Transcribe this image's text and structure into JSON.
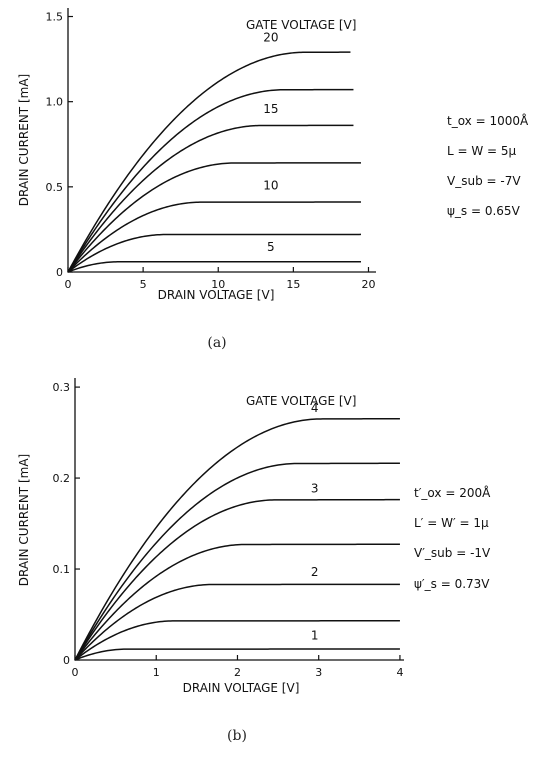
{
  "chart_data": [
    {
      "id": "a",
      "type": "line",
      "caption": "(a)",
      "xlabel": "DRAIN VOLTAGE [V]",
      "ylabel": "DRAIN CURRENT [mA]",
      "legend_title": "GATE VOLTAGE [V]",
      "xlim": [
        0,
        20.5
      ],
      "ylim": [
        0,
        1.55
      ],
      "xticks": [
        0,
        5,
        10,
        15,
        20
      ],
      "xtick_labels": [
        "0",
        "5",
        "10",
        "15",
        "20"
      ],
      "yticks": [
        0,
        0.5,
        1.0,
        1.5
      ],
      "ytick_labels": [
        "0",
        "0.5",
        "1.0",
        "1.5"
      ],
      "grid": false,
      "vsat_scale": 0.77,
      "series": [
        {
          "isat": 1.29,
          "xmax": 18.8,
          "label": "20",
          "label_x": 13.5,
          "label_y": 1.33
        },
        {
          "isat": 1.07,
          "xmax": 19.0,
          "label": "",
          "label_x": 0,
          "label_y": 0
        },
        {
          "isat": 0.86,
          "xmax": 19.0,
          "label": "15",
          "label_x": 13.5,
          "label_y": 0.91
        },
        {
          "isat": 0.64,
          "xmax": 19.5,
          "label": "",
          "label_x": 0,
          "label_y": 0
        },
        {
          "isat": 0.41,
          "xmax": 19.5,
          "label": "10",
          "label_x": 13.5,
          "label_y": 0.46
        },
        {
          "isat": 0.22,
          "xmax": 19.5,
          "label": "",
          "label_x": 0,
          "label_y": 0
        },
        {
          "isat": 0.06,
          "xmax": 19.5,
          "label": "5",
          "label_x": 13.5,
          "label_y": 0.1
        }
      ],
      "params": [
        "t_ox = 1000Å",
        "L = W = 5μ",
        "V_sub = -7V",
        "ψ_s = 0.65V"
      ]
    },
    {
      "id": "b",
      "type": "line",
      "caption": "(b)",
      "xlabel": "DRAIN VOLTAGE [V]",
      "ylabel": "DRAIN CURRENT [mA]",
      "legend_title": "GATE VOLTAGE [V]",
      "xlim": [
        0,
        4.05
      ],
      "ylim": [
        0,
        0.31
      ],
      "xticks": [
        0,
        1,
        2,
        3,
        4
      ],
      "xtick_labels": [
        "0",
        "1",
        "2",
        "3",
        "4"
      ],
      "yticks": [
        0,
        0.1,
        0.2,
        0.3
      ],
      "ytick_labels": [
        "0",
        "0.1",
        "0.2",
        "0.3"
      ],
      "grid": false,
      "vsat_scale": 0.75,
      "series": [
        {
          "isat": 0.265,
          "xmax": 4.0,
          "label": "4",
          "label_x": 2.95,
          "label_y": 0.268
        },
        {
          "isat": 0.216,
          "xmax": 4.0,
          "label": "",
          "label_x": 0,
          "label_y": 0
        },
        {
          "isat": 0.176,
          "xmax": 4.0,
          "label": "3",
          "label_x": 2.95,
          "label_y": 0.18
        },
        {
          "isat": 0.127,
          "xmax": 4.0,
          "label": "",
          "label_x": 0,
          "label_y": 0
        },
        {
          "isat": 0.083,
          "xmax": 4.0,
          "label": "2",
          "label_x": 2.95,
          "label_y": 0.088
        },
        {
          "isat": 0.043,
          "xmax": 4.0,
          "label": "",
          "label_x": 0,
          "label_y": 0
        },
        {
          "isat": 0.012,
          "xmax": 4.0,
          "label": "1",
          "label_x": 2.95,
          "label_y": 0.018
        }
      ],
      "params": [
        "t′_ox = 200Å",
        "L′ = W′ = 1μ",
        "V′_sub = -1V",
        "ψ′_s = 0.73V"
      ]
    }
  ]
}
